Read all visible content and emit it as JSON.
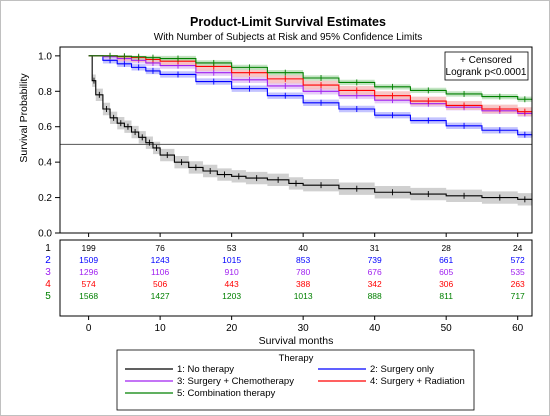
{
  "chart_data": {
    "type": "line",
    "title": "Product-Limit Survival Estimates",
    "subtitle": "With Number of Subjects at Risk and 95% Confidence Limits",
    "xlabel": "Survival months",
    "ylabel": "Survival Probability",
    "xlim": [
      -4,
      62
    ],
    "ylim": [
      0,
      1.05
    ],
    "x_ticks": [
      0,
      10,
      20,
      30,
      40,
      50,
      60
    ],
    "y_ticks": [
      0.0,
      0.2,
      0.4,
      0.6,
      0.8,
      1.0
    ],
    "x_tick_labels": [
      "0",
      "10",
      "20",
      "30",
      "40",
      "50",
      "60"
    ],
    "y_tick_labels": [
      "0.0",
      "0.2",
      "0.4",
      "0.6",
      "0.8",
      "1.0"
    ],
    "reference_line_y": 0.5,
    "grid": false,
    "inset": {
      "line1": "+ Censored",
      "line2": "Logrank p<0.0001"
    },
    "legend": {
      "title": "Therapy",
      "placement": "bottom",
      "entries": [
        "1: No therapy",
        "2: Surgery only",
        "3: Surgery + Chemotherapy",
        "4: Surgery + Radiation",
        "5: Combination therapy"
      ]
    },
    "series": [
      {
        "id": "1",
        "color": "#000000",
        "band": "#c8c8c8",
        "x": [
          0,
          0.5,
          1,
          2,
          3,
          4,
          5,
          6,
          7,
          8,
          9,
          10,
          12,
          14,
          16,
          18,
          20,
          22,
          25,
          28,
          30,
          35,
          40,
          45,
          50,
          55,
          60,
          62
        ],
        "y": [
          1.0,
          0.86,
          0.78,
          0.7,
          0.65,
          0.62,
          0.6,
          0.57,
          0.54,
          0.51,
          0.48,
          0.44,
          0.4,
          0.37,
          0.35,
          0.33,
          0.32,
          0.31,
          0.3,
          0.28,
          0.27,
          0.25,
          0.23,
          0.22,
          0.21,
          0.2,
          0.19,
          0.185
        ],
        "band_half_width": 0.035
      },
      {
        "id": "2",
        "color": "#0000ff",
        "band": "#b9b9ff",
        "x": [
          0,
          2,
          4,
          6,
          8,
          10,
          15,
          20,
          25,
          30,
          35,
          40,
          45,
          50,
          55,
          60,
          62
        ],
        "y": [
          1.0,
          0.975,
          0.955,
          0.935,
          0.915,
          0.895,
          0.855,
          0.815,
          0.775,
          0.735,
          0.7,
          0.665,
          0.635,
          0.605,
          0.58,
          0.555,
          0.545
        ],
        "band_half_width": 0.018
      },
      {
        "id": "3",
        "color": "#a020f0",
        "band": "#e2c4f7",
        "x": [
          0,
          2,
          4,
          6,
          8,
          10,
          15,
          20,
          25,
          30,
          35,
          40,
          45,
          50,
          55,
          60,
          62
        ],
        "y": [
          1.0,
          0.995,
          0.985,
          0.975,
          0.96,
          0.945,
          0.905,
          0.865,
          0.83,
          0.8,
          0.775,
          0.75,
          0.73,
          0.71,
          0.69,
          0.675,
          0.67
        ],
        "band_half_width": 0.018
      },
      {
        "id": "4",
        "color": "#ff0000",
        "band": "#f7bcbc",
        "x": [
          0,
          2,
          4,
          6,
          8,
          10,
          15,
          20,
          25,
          30,
          35,
          40,
          45,
          50,
          55,
          60,
          62
        ],
        "y": [
          1.0,
          1.0,
          0.995,
          0.99,
          0.98,
          0.97,
          0.94,
          0.905,
          0.87,
          0.835,
          0.805,
          0.775,
          0.745,
          0.72,
          0.7,
          0.685,
          0.68
        ],
        "band_half_width": 0.025
      },
      {
        "id": "5",
        "color": "#008000",
        "band": "#b8e0b8",
        "x": [
          0,
          2,
          4,
          6,
          8,
          10,
          15,
          20,
          25,
          30,
          35,
          40,
          45,
          50,
          55,
          60,
          62
        ],
        "y": [
          1.0,
          1.0,
          0.998,
          0.995,
          0.99,
          0.985,
          0.96,
          0.935,
          0.905,
          0.875,
          0.85,
          0.825,
          0.805,
          0.785,
          0.77,
          0.755,
          0.75
        ],
        "band_half_width": 0.015
      }
    ],
    "at_risk": {
      "times": [
        0,
        10,
        20,
        30,
        40,
        50,
        60
      ],
      "rows": [
        {
          "id": "1",
          "color": "#000000",
          "counts": [
            "199",
            "76",
            "53",
            "40",
            "31",
            "28",
            "24"
          ]
        },
        {
          "id": "2",
          "color": "#0000ff",
          "counts": [
            "1509",
            "1243",
            "1015",
            "853",
            "739",
            "661",
            "572"
          ]
        },
        {
          "id": "3",
          "color": "#a020f0",
          "counts": [
            "1296",
            "1106",
            "910",
            "780",
            "676",
            "605",
            "535"
          ]
        },
        {
          "id": "4",
          "color": "#ff0000",
          "counts": [
            "574",
            "506",
            "443",
            "388",
            "342",
            "306",
            "263"
          ]
        },
        {
          "id": "5",
          "color": "#008000",
          "counts": [
            "1568",
            "1427",
            "1203",
            "1013",
            "888",
            "811",
            "717"
          ]
        }
      ]
    }
  }
}
